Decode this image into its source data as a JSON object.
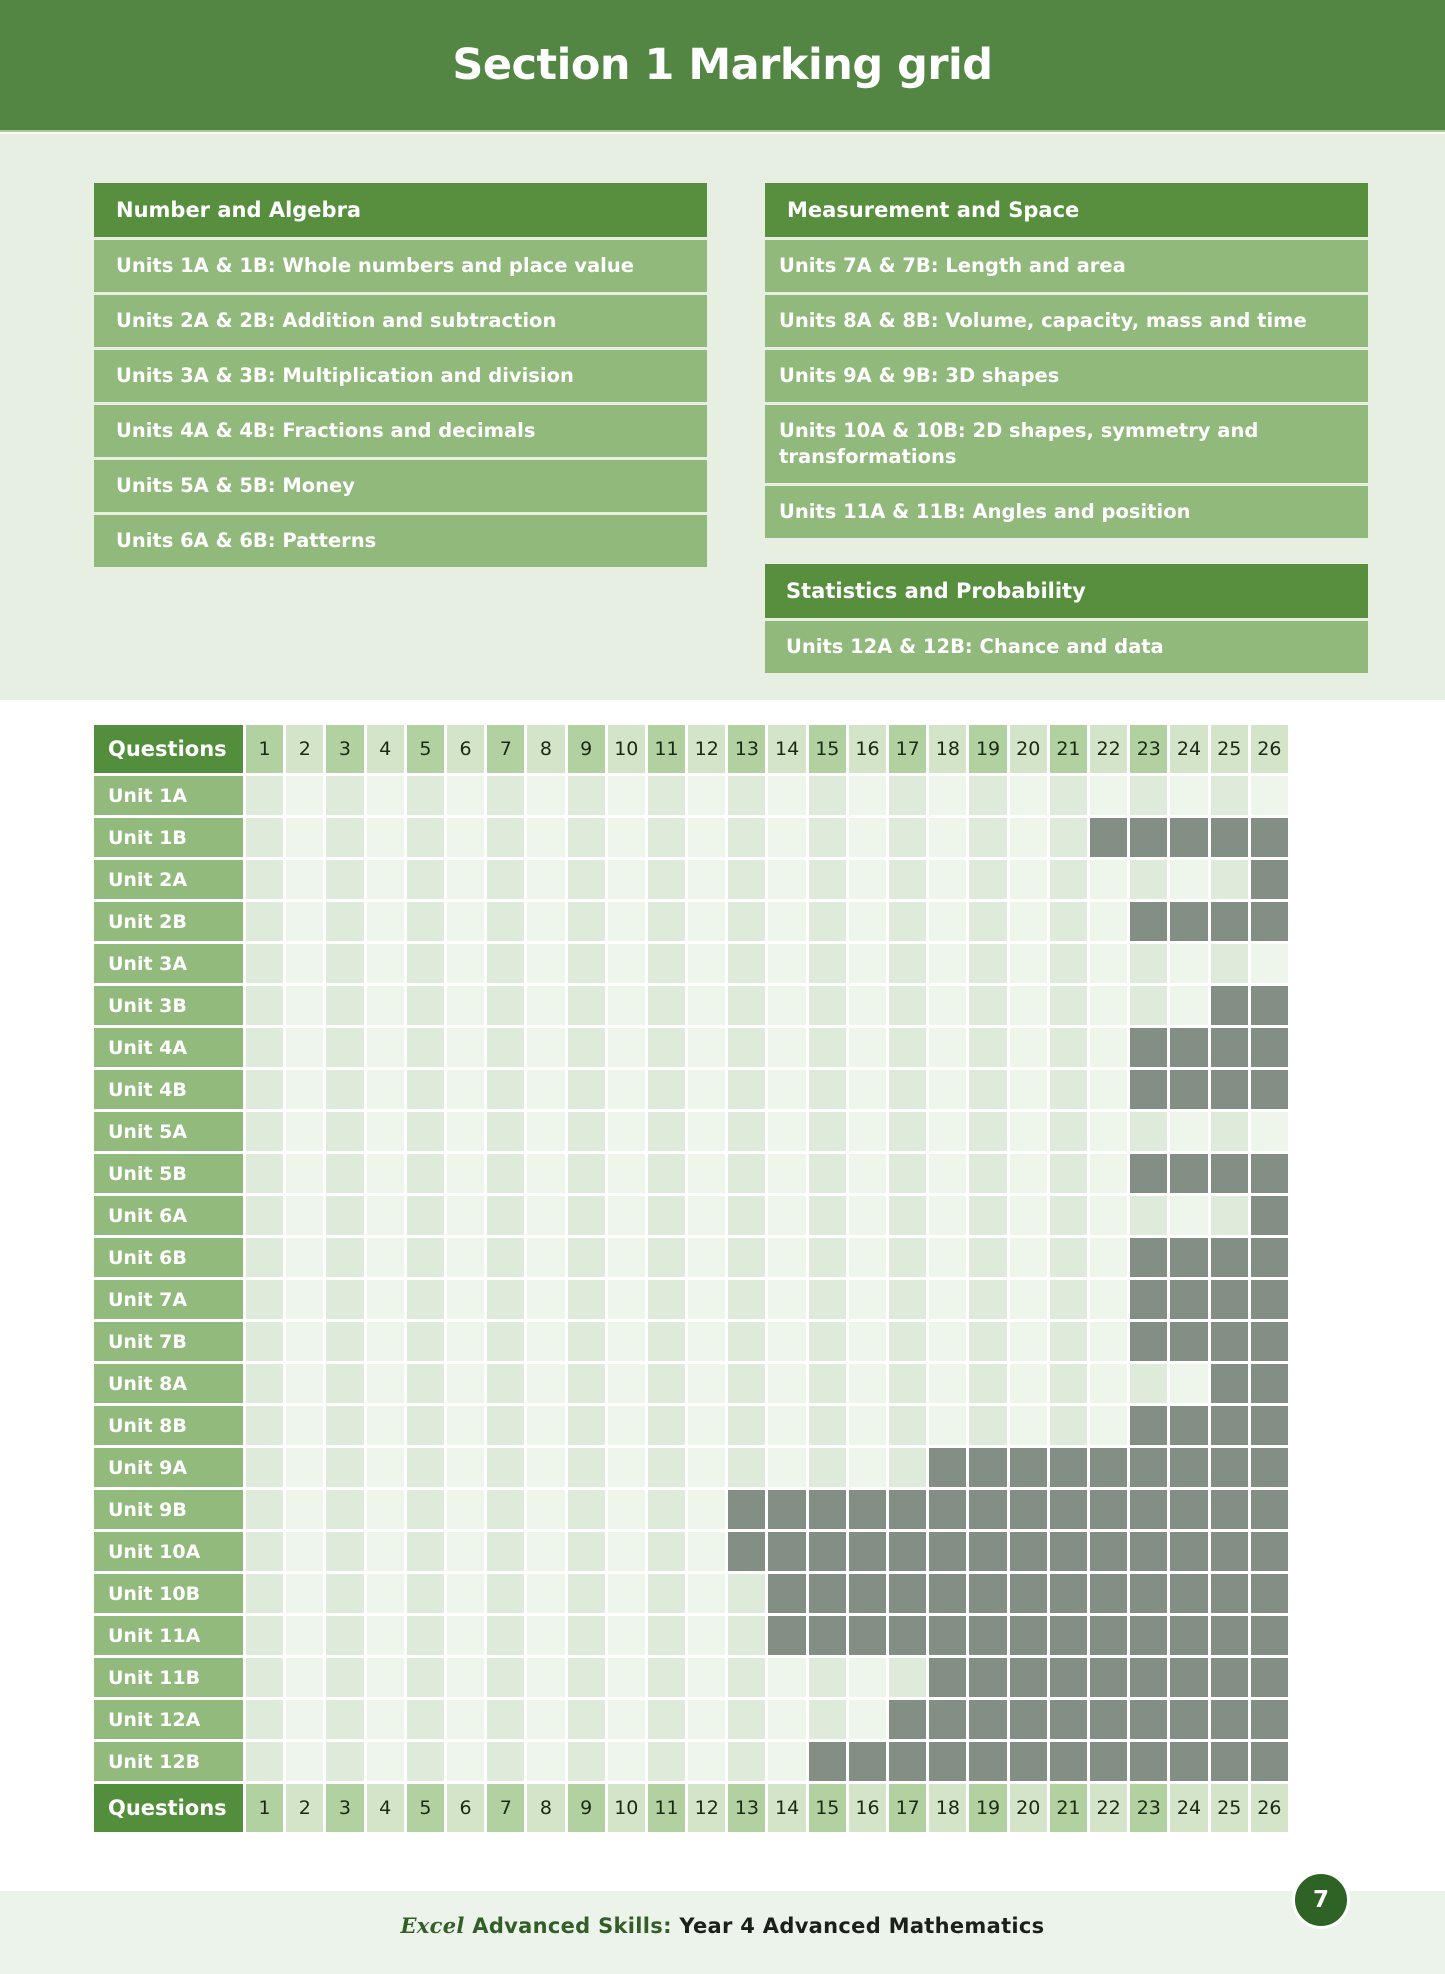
{
  "page": {
    "title": "Section 1 Marking grid",
    "page_number": "7",
    "footer": {
      "excel": "Excel",
      "brand": "Advanced Skills:",
      "book_title": "Year 4 Advanced Mathematics"
    }
  },
  "strands": {
    "number_algebra": {
      "heading": "Number and Algebra",
      "items": [
        "Units 1A & 1B: Whole numbers and place value",
        "Units 2A & 2B: Addition and subtraction",
        "Units 3A & 3B: Multiplication and division",
        "Units 4A & 4B: Fractions and decimals",
        "Units 5A & 5B: Money",
        "Units 6A & 6B: Patterns"
      ]
    },
    "measurement_space": {
      "heading": "Measurement and Space",
      "items": [
        "Units 7A & 7B: Length and area",
        "Units 8A & 8B: Volume, capacity, mass and time",
        "Units 9A & 9B: 3D shapes",
        "Units 10A & 10B: 2D shapes, symmetry and transformations",
        "Units 11A & 11B: Angles and position"
      ]
    },
    "statistics_probability": {
      "heading": "Statistics and Probability",
      "items": [
        "Units 12A & 12B: Chance and data"
      ]
    }
  },
  "grid": {
    "header_label": "Questions",
    "footer_label": "Questions",
    "questions": [
      "1",
      "2",
      "3",
      "4",
      "5",
      "6",
      "7",
      "8",
      "9",
      "10",
      "11",
      "12",
      "13",
      "14",
      "15",
      "16",
      "17",
      "18",
      "19",
      "20",
      "21",
      "22",
      "23",
      "24",
      "25",
      "26"
    ],
    "header_dark_columns": [
      1,
      3,
      5,
      7,
      9,
      11,
      13,
      15,
      17,
      19,
      21,
      23
    ],
    "colors": {
      "unshaded_odd": "#deeada",
      "unshaded_even": "#eef5ea",
      "shaded_na": "#838f84",
      "label_bg": "#92ba7c",
      "header_bg": "#538e3c"
    },
    "rows": [
      {
        "unit": "Unit 1A",
        "shaded_from": null
      },
      {
        "unit": "Unit 1B",
        "shaded_from": 22
      },
      {
        "unit": "Unit 2A",
        "shaded_from": 26
      },
      {
        "unit": "Unit 2B",
        "shaded_from": 23
      },
      {
        "unit": "Unit 3A",
        "shaded_from": null
      },
      {
        "unit": "Unit 3B",
        "shaded_from": 25
      },
      {
        "unit": "Unit 4A",
        "shaded_from": 23
      },
      {
        "unit": "Unit 4B",
        "shaded_from": 23
      },
      {
        "unit": "Unit 5A",
        "shaded_from": null
      },
      {
        "unit": "Unit 5B",
        "shaded_from": 23
      },
      {
        "unit": "Unit 6A",
        "shaded_from": 26
      },
      {
        "unit": "Unit 6B",
        "shaded_from": 23
      },
      {
        "unit": "Unit 7A",
        "shaded_from": 23
      },
      {
        "unit": "Unit 7B",
        "shaded_from": 23
      },
      {
        "unit": "Unit 8A",
        "shaded_from": 25
      },
      {
        "unit": "Unit 8B",
        "shaded_from": 23
      },
      {
        "unit": "Unit 9A",
        "shaded_from": 18
      },
      {
        "unit": "Unit 9B",
        "shaded_from": 13
      },
      {
        "unit": "Unit 10A",
        "shaded_from": 13
      },
      {
        "unit": "Unit 10B",
        "shaded_from": 14
      },
      {
        "unit": "Unit 11A",
        "shaded_from": 14
      },
      {
        "unit": "Unit 11B",
        "shaded_from": 18
      },
      {
        "unit": "Unit 12A",
        "shaded_from": 17
      },
      {
        "unit": "Unit 12B",
        "shaded_from": 15
      }
    ]
  }
}
